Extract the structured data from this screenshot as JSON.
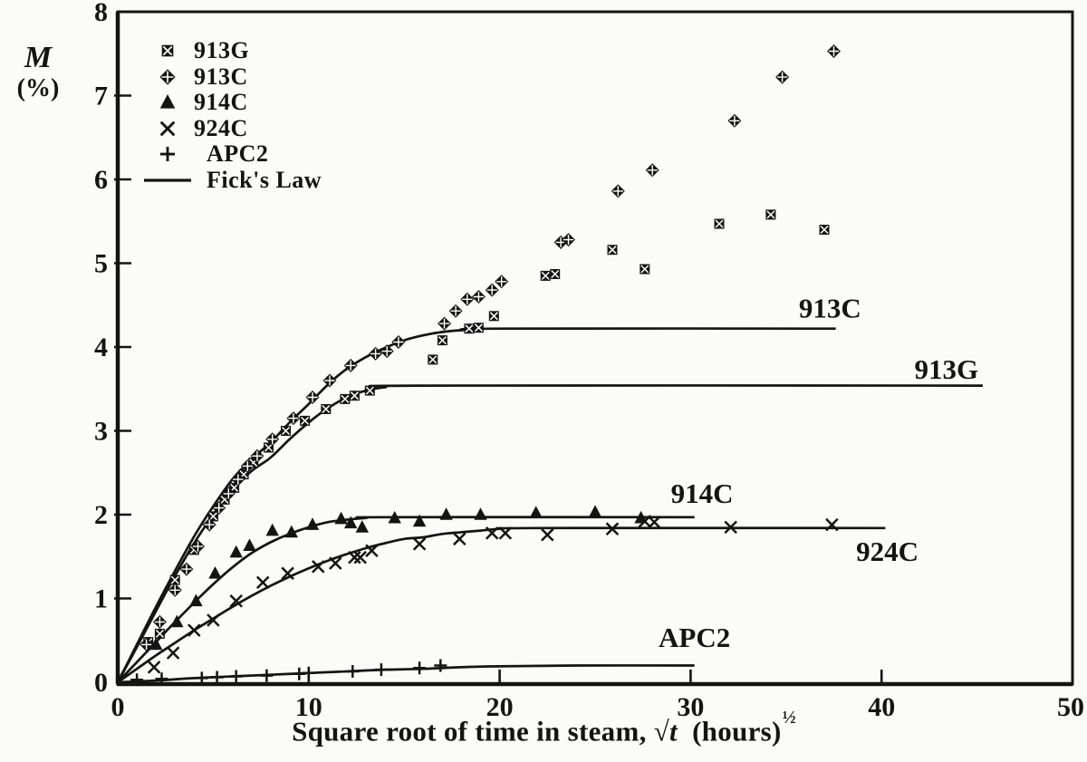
{
  "figure": {
    "background": "#fbfbf9",
    "ink": "#141414"
  },
  "chart_data": {
    "type": "line+scatter",
    "xlabel": "Square root of time in steam, √t (hours)½",
    "ylabel": "M (%)",
    "ylabel_symbol": "M",
    "ylabel_units": "(%)",
    "xlabel_parts": {
      "main": "Square root of time in steam,",
      "sqrt": "√",
      "var": "t",
      "units": "(hours)",
      "exponent": "½"
    },
    "xlim": [
      0,
      50
    ],
    "ylim": [
      0,
      8
    ],
    "x_ticks": [
      0,
      10,
      20,
      30,
      40,
      50
    ],
    "y_ticks": [
      0,
      1,
      2,
      3,
      4,
      5,
      6,
      7,
      8
    ],
    "grid": false,
    "legend_position": "top-left",
    "legend_items": [
      {
        "id": "913G",
        "label": "913G",
        "marker": "square-cross",
        "indent": false
      },
      {
        "id": "913C",
        "label": "913C",
        "marker": "diamond-cross",
        "indent": false
      },
      {
        "id": "914C",
        "label": "914C",
        "marker": "triangle",
        "indent": false
      },
      {
        "id": "924C",
        "label": "924C",
        "marker": "x",
        "indent": false
      },
      {
        "id": "APC2",
        "label": "APC2",
        "marker": "plus",
        "indent": true
      },
      {
        "id": "ficks-law",
        "label": "Fick's Law",
        "marker": "line",
        "indent": true
      }
    ],
    "fick_curves": [
      {
        "name": "913C",
        "label": "913C",
        "plateau": 4.22,
        "line_end": 37.6,
        "label_pos": [
          37.3,
          4.35
        ],
        "points": [
          [
            0,
            0
          ],
          [
            1,
            0.45
          ],
          [
            2,
            0.9
          ],
          [
            3,
            1.33
          ],
          [
            4,
            1.74
          ],
          [
            5,
            2.1
          ],
          [
            6,
            2.42
          ],
          [
            7,
            2.66
          ],
          [
            8,
            2.86
          ],
          [
            9,
            3.1
          ],
          [
            10,
            3.32
          ],
          [
            11,
            3.55
          ],
          [
            12,
            3.74
          ],
          [
            13,
            3.88
          ],
          [
            14,
            3.99
          ],
          [
            15,
            4.08
          ],
          [
            16,
            4.14
          ],
          [
            17,
            4.18
          ],
          [
            18,
            4.2
          ],
          [
            20,
            4.22
          ]
        ]
      },
      {
        "name": "913G",
        "label": "913G",
        "plateau": 3.54,
        "line_end": 45.3,
        "label_pos": [
          43.4,
          3.62
        ],
        "points": [
          [
            0,
            0
          ],
          [
            1,
            0.42
          ],
          [
            2,
            0.85
          ],
          [
            3,
            1.27
          ],
          [
            4,
            1.66
          ],
          [
            5,
            2.0
          ],
          [
            6,
            2.3
          ],
          [
            7,
            2.52
          ],
          [
            8,
            2.68
          ],
          [
            9,
            2.9
          ],
          [
            10,
            3.1
          ],
          [
            11,
            3.27
          ],
          [
            12,
            3.4
          ],
          [
            13,
            3.48
          ],
          [
            14,
            3.52
          ],
          [
            16,
            3.54
          ]
        ]
      },
      {
        "name": "914C",
        "label": "914C",
        "plateau": 1.97,
        "line_end": 30.2,
        "label_pos": [
          30.6,
          2.14
        ],
        "points": [
          [
            0,
            0
          ],
          [
            1,
            0.24
          ],
          [
            2,
            0.48
          ],
          [
            3,
            0.72
          ],
          [
            4,
            0.95
          ],
          [
            5,
            1.17
          ],
          [
            6,
            1.37
          ],
          [
            7,
            1.54
          ],
          [
            8,
            1.67
          ],
          [
            9,
            1.77
          ],
          [
            10,
            1.85
          ],
          [
            11,
            1.91
          ],
          [
            12,
            1.94
          ],
          [
            13,
            1.96
          ],
          [
            14,
            1.97
          ]
        ]
      },
      {
        "name": "924C",
        "label": "924C",
        "plateau": 1.84,
        "line_end": 40.2,
        "label_pos": [
          40.3,
          1.45
        ],
        "points": [
          [
            0,
            0
          ],
          [
            1,
            0.16
          ],
          [
            2,
            0.32
          ],
          [
            3,
            0.47
          ],
          [
            4,
            0.62
          ],
          [
            5,
            0.76
          ],
          [
            6,
            0.9
          ],
          [
            7,
            1.03
          ],
          [
            8,
            1.15
          ],
          [
            9,
            1.26
          ],
          [
            10,
            1.36
          ],
          [
            11,
            1.45
          ],
          [
            12,
            1.53
          ],
          [
            13,
            1.6
          ],
          [
            14,
            1.66
          ],
          [
            15,
            1.71
          ],
          [
            16,
            1.73
          ],
          [
            17,
            1.77
          ],
          [
            18,
            1.79
          ],
          [
            19,
            1.81
          ],
          [
            20,
            1.83
          ],
          [
            22,
            1.84
          ]
        ]
      },
      {
        "name": "APC2",
        "label": "APC2",
        "plateau": 0.2,
        "line_end": 30.2,
        "label_pos": [
          30.2,
          0.42
        ],
        "points": [
          [
            0,
            0
          ],
          [
            2,
            0.02
          ],
          [
            4,
            0.05
          ],
          [
            6,
            0.07
          ],
          [
            8,
            0.09
          ],
          [
            10,
            0.11
          ],
          [
            12,
            0.13
          ],
          [
            14,
            0.15
          ],
          [
            16,
            0.16
          ],
          [
            18,
            0.18
          ],
          [
            20,
            0.19
          ],
          [
            24,
            0.2
          ]
        ]
      }
    ],
    "scatter_series": [
      {
        "name": "913G",
        "marker": "square-cross",
        "points": [
          [
            1.6,
            0.48
          ],
          [
            2.2,
            0.58
          ],
          [
            3,
            1.22
          ],
          [
            4,
            1.58
          ],
          [
            5,
            1.98
          ],
          [
            5.6,
            2.18
          ],
          [
            6.1,
            2.32
          ],
          [
            6.6,
            2.48
          ],
          [
            7.1,
            2.62
          ],
          [
            7.9,
            2.8
          ],
          [
            8.8,
            3.0
          ],
          [
            9.8,
            3.12
          ],
          [
            10.9,
            3.26
          ],
          [
            11.9,
            3.38
          ],
          [
            12.4,
            3.42
          ],
          [
            13.2,
            3.48
          ],
          [
            16.5,
            3.85
          ],
          [
            17,
            4.08
          ],
          [
            18.4,
            4.22
          ],
          [
            18.9,
            4.23
          ],
          [
            19.7,
            4.37
          ],
          [
            22.4,
            4.85
          ],
          [
            22.9,
            4.87
          ],
          [
            25.9,
            5.16
          ],
          [
            27.6,
            4.93
          ],
          [
            31.5,
            5.47
          ],
          [
            34.2,
            5.58
          ],
          [
            37,
            5.4
          ]
        ]
      },
      {
        "name": "913C",
        "marker": "diamond-cross",
        "points": [
          [
            1.5,
            0.45
          ],
          [
            2.2,
            0.72
          ],
          [
            3,
            1.1
          ],
          [
            3.6,
            1.35
          ],
          [
            4.2,
            1.62
          ],
          [
            4.8,
            1.88
          ],
          [
            5.3,
            2.08
          ],
          [
            5.8,
            2.25
          ],
          [
            6.3,
            2.42
          ],
          [
            6.8,
            2.58
          ],
          [
            7.3,
            2.7
          ],
          [
            8.1,
            2.9
          ],
          [
            9.2,
            3.15
          ],
          [
            10.2,
            3.4
          ],
          [
            11.1,
            3.6
          ],
          [
            12.2,
            3.78
          ],
          [
            13.5,
            3.92
          ],
          [
            14.1,
            3.95
          ],
          [
            14.7,
            4.06
          ],
          [
            17.1,
            4.28
          ],
          [
            17.7,
            4.43
          ],
          [
            18.3,
            4.57
          ],
          [
            18.9,
            4.6
          ],
          [
            19.6,
            4.68
          ],
          [
            20.1,
            4.78
          ],
          [
            23.2,
            5.25
          ],
          [
            23.6,
            5.28
          ],
          [
            26.2,
            5.86
          ],
          [
            28,
            6.11
          ],
          [
            32.3,
            6.7
          ],
          [
            34.8,
            7.22
          ],
          [
            37.5,
            7.53
          ]
        ]
      },
      {
        "name": "914C",
        "marker": "triangle",
        "points": [
          [
            2,
            0.45
          ],
          [
            3.1,
            0.72
          ],
          [
            4.1,
            0.97
          ],
          [
            5.1,
            1.3
          ],
          [
            6.2,
            1.55
          ],
          [
            6.9,
            1.63
          ],
          [
            8.1,
            1.81
          ],
          [
            9.1,
            1.79
          ],
          [
            10.2,
            1.88
          ],
          [
            11.7,
            1.95
          ],
          [
            12.2,
            1.9
          ],
          [
            12.8,
            1.85
          ],
          [
            14.5,
            1.96
          ],
          [
            15.8,
            1.92
          ],
          [
            17.2,
            2.0
          ],
          [
            19,
            2.0
          ],
          [
            21.9,
            2.02
          ],
          [
            25,
            2.03
          ],
          [
            27.4,
            1.96
          ]
        ]
      },
      {
        "name": "924C",
        "marker": "x",
        "points": [
          [
            1.9,
            0.18
          ],
          [
            2.9,
            0.35
          ],
          [
            4,
            0.62
          ],
          [
            5,
            0.74
          ],
          [
            6.2,
            0.97
          ],
          [
            7.6,
            1.19
          ],
          [
            8.9,
            1.3
          ],
          [
            10.5,
            1.38
          ],
          [
            11.4,
            1.42
          ],
          [
            12.4,
            1.49
          ],
          [
            12.7,
            1.49
          ],
          [
            13.3,
            1.57
          ],
          [
            15.8,
            1.65
          ],
          [
            17.9,
            1.71
          ],
          [
            19.6,
            1.78
          ],
          [
            20.3,
            1.78
          ],
          [
            22.5,
            1.76
          ],
          [
            25.9,
            1.83
          ],
          [
            27.6,
            1.92
          ],
          [
            28.1,
            1.91
          ],
          [
            32.1,
            1.85
          ],
          [
            37.4,
            1.88
          ]
        ]
      },
      {
        "name": "APC2",
        "marker": "plus",
        "points": [
          [
            1,
            0.03
          ],
          [
            2.3,
            0.04
          ],
          [
            4.4,
            0.05
          ],
          [
            5.2,
            0.06
          ],
          [
            6.2,
            0.07
          ],
          [
            7.8,
            0.08
          ],
          [
            9.5,
            0.1
          ],
          [
            10,
            0.11
          ],
          [
            12.3,
            0.13
          ],
          [
            13.8,
            0.15
          ],
          [
            15.8,
            0.17
          ],
          [
            16.9,
            0.2
          ]
        ]
      }
    ]
  }
}
